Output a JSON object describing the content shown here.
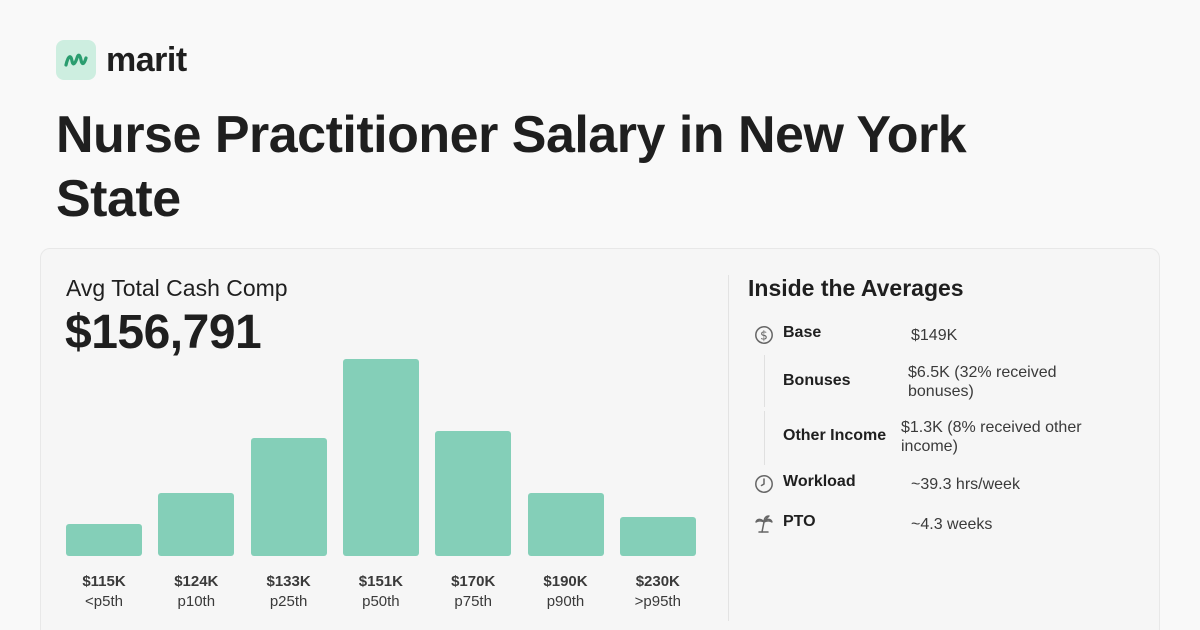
{
  "brand": {
    "name": "marit",
    "logo_icon": "marit-logo-icon",
    "logo_bg": "#cdeee0",
    "logo_fg": "#2a9d6f"
  },
  "title": "Nurse Practitioner Salary in New York State",
  "comp": {
    "label": "Avg Total Cash Comp",
    "value": "$156,791"
  },
  "chart_data": {
    "type": "bar",
    "color": "#84cfb8",
    "categories": [
      "<p5th",
      "p10th",
      "p25th",
      "p50th",
      "p75th",
      "p90th",
      ">p95th"
    ],
    "value_labels": [
      "$115K",
      "$124K",
      "$133K",
      "$151K",
      "$170K",
      "$190K",
      "$230K"
    ],
    "values": [
      32,
      63,
      118,
      197,
      125,
      63,
      39
    ]
  },
  "averages": {
    "title": "Inside the Averages",
    "rows": [
      {
        "icon": "dollar-icon",
        "label": "Base",
        "value": "$149K"
      },
      {
        "icon": "",
        "label": "Bonuses",
        "value": "$6.5K (32% received bonuses)"
      },
      {
        "icon": "",
        "label": "Other Income",
        "value": "$1.3K (8% received other income)"
      },
      {
        "icon": "clock-icon",
        "label": "Workload",
        "value": "~39.3 hrs/week"
      },
      {
        "icon": "palm-tree-icon",
        "label": "PTO",
        "value": "~4.3 weeks"
      }
    ]
  }
}
